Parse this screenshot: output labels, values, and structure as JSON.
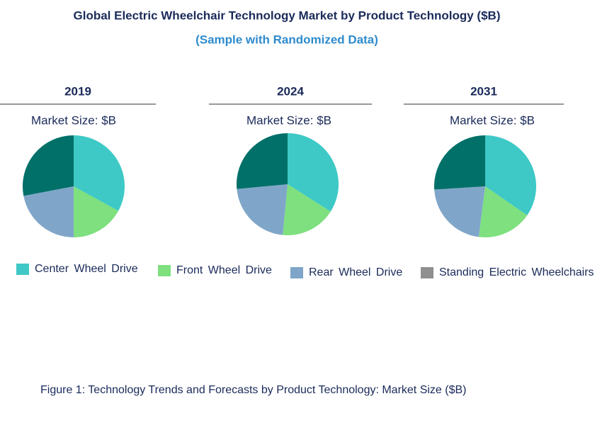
{
  "title": "Global Electric Wheelchair Technology Market by Product Technology ($B)",
  "subtitle": "(Sample with Randomized Data)",
  "caption": "Figure 1: Technology Trends and Forecasts by Product Technology: Market Size ($B)",
  "legend_colors": [
    "#3ec9c6",
    "#7ee07e",
    "#7fa6c9",
    "#8f8f8f"
  ],
  "chart_data": [
    {
      "type": "pie",
      "title": "2019",
      "subtitle": "Market Size: $B",
      "categories": [
        "Center Wheel Drive",
        "Front Wheel Drive",
        "Rear Wheel Drive",
        "Standing Electric Wheelchairs"
      ],
      "values": [
        33,
        17,
        22,
        28
      ],
      "colors": [
        "#3ec9c6",
        "#7ee07e",
        "#7fa6c9",
        "#007068"
      ]
    },
    {
      "type": "pie",
      "title": "2024",
      "subtitle": "Market Size: $B",
      "categories": [
        "Center Wheel Drive",
        "Front Wheel Drive",
        "Rear Wheel Drive",
        "Standing Electric Wheelchairs"
      ],
      "values": [
        34,
        17.5,
        22,
        26.5
      ],
      "colors": [
        "#3ec9c6",
        "#7ee07e",
        "#7fa6c9",
        "#007068"
      ]
    },
    {
      "type": "pie",
      "title": "2031",
      "subtitle": "Market Size: $B",
      "categories": [
        "Center Wheel Drive",
        "Front Wheel Drive",
        "Rear Wheel Drive",
        "Standing Electric Wheelchairs"
      ],
      "values": [
        34.6,
        17.4,
        22,
        26
      ],
      "colors": [
        "#3ec9c6",
        "#7ee07e",
        "#7fa6c9",
        "#007068"
      ]
    }
  ]
}
